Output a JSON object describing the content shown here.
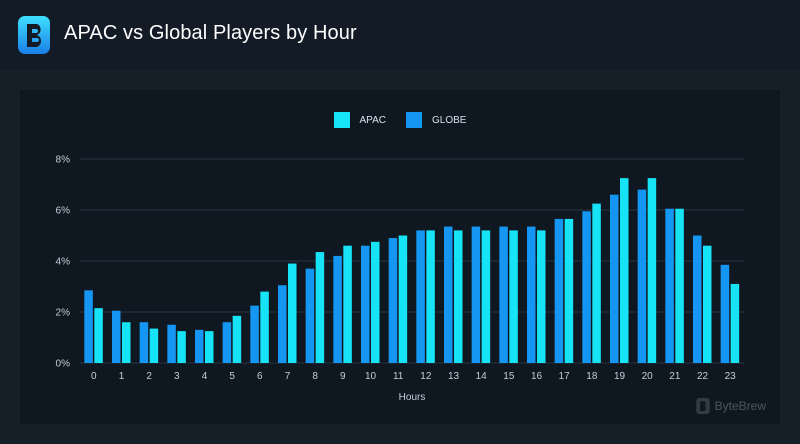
{
  "header": {
    "title": "APAC vs Global Players by Hour",
    "logo_icon": "bytebrew-b-logo-icon",
    "accent": "#1ea0ff"
  },
  "colors": {
    "apac": "#16e3f5",
    "globe": "#1596f2",
    "grid": "#2a3540",
    "axis_text": "#c4ced8"
  },
  "watermark": {
    "text": "ByteBrew"
  },
  "chart_data": {
    "type": "bar",
    "xlabel": "Hours",
    "ylabel": "",
    "ylim": [
      0,
      8
    ],
    "yticks": [
      "0%",
      "2%",
      "4%",
      "6%",
      "8%"
    ],
    "grid": true,
    "legend_position": "top-center",
    "categories": [
      "0",
      "1",
      "2",
      "3",
      "4",
      "5",
      "6",
      "7",
      "8",
      "9",
      "10",
      "11",
      "12",
      "13",
      "14",
      "15",
      "16",
      "17",
      "18",
      "19",
      "20",
      "21",
      "22",
      "23"
    ],
    "series": [
      {
        "name": "APAC",
        "values": [
          2.15,
          1.6,
          1.35,
          1.25,
          1.25,
          1.85,
          2.8,
          3.9,
          4.35,
          4.6,
          4.75,
          5.0,
          5.2,
          5.2,
          5.2,
          5.2,
          5.2,
          5.65,
          6.25,
          7.25,
          7.25,
          6.05,
          4.6,
          3.1
        ]
      },
      {
        "name": "GLOBE",
        "values": [
          2.85,
          2.05,
          1.6,
          1.5,
          1.3,
          1.6,
          2.25,
          3.05,
          3.7,
          4.2,
          4.6,
          4.9,
          5.2,
          5.35,
          5.35,
          5.35,
          5.35,
          5.65,
          5.95,
          6.6,
          6.8,
          6.05,
          5.0,
          3.85
        ]
      }
    ]
  }
}
